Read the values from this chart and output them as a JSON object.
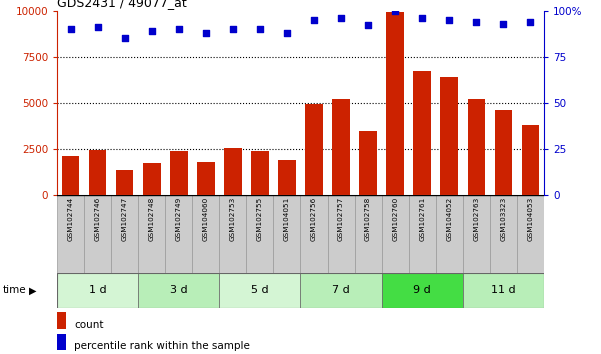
{
  "title": "GDS2431 / 49077_at",
  "samples": [
    "GSM102744",
    "GSM102746",
    "GSM102747",
    "GSM102748",
    "GSM102749",
    "GSM104060",
    "GSM102753",
    "GSM102755",
    "GSM104051",
    "GSM102756",
    "GSM102757",
    "GSM102758",
    "GSM102760",
    "GSM102761",
    "GSM104052",
    "GSM102763",
    "GSM103323",
    "GSM104053"
  ],
  "counts": [
    2100,
    2450,
    1350,
    1700,
    2350,
    1750,
    2550,
    2400,
    1900,
    4950,
    5200,
    3450,
    9900,
    6700,
    6400,
    5200,
    4600,
    3800
  ],
  "percentiles": [
    90,
    91,
    85,
    89,
    90,
    88,
    90,
    90,
    88,
    95,
    96,
    92,
    100,
    96,
    95,
    94,
    93,
    94
  ],
  "groups": [
    {
      "label": "1 d",
      "start": 0,
      "end": 3,
      "color": "#d4f5d4"
    },
    {
      "label": "3 d",
      "start": 3,
      "end": 6,
      "color": "#b8eeb8"
    },
    {
      "label": "5 d",
      "start": 6,
      "end": 9,
      "color": "#d4f5d4"
    },
    {
      "label": "7 d",
      "start": 9,
      "end": 12,
      "color": "#b8eeb8"
    },
    {
      "label": "9 d",
      "start": 12,
      "end": 15,
      "color": "#44dd44"
    },
    {
      "label": "11 d",
      "start": 15,
      "end": 18,
      "color": "#b8eeb8"
    }
  ],
  "bar_color": "#cc2200",
  "dot_color": "#0000cc",
  "ylim_left": [
    0,
    10000
  ],
  "ylim_right": [
    0,
    100
  ],
  "yticks_left": [
    0,
    2500,
    5000,
    7500,
    10000
  ],
  "yticks_right": [
    0,
    25,
    50,
    75,
    100
  ],
  "sample_box_color": "#cccccc",
  "bg_color": "#ffffff",
  "legend_count_color": "#cc2200",
  "legend_pct_color": "#0000cc"
}
